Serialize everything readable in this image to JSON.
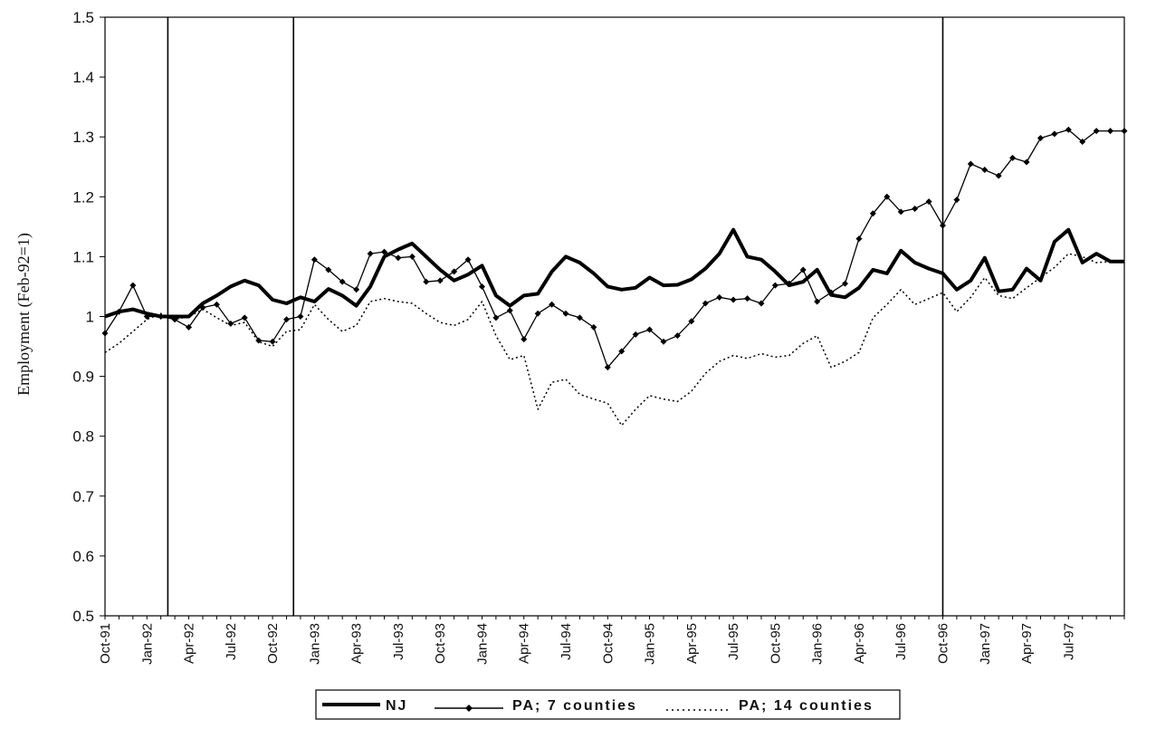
{
  "chart_data": {
    "type": "line",
    "ylabel": "Employment (Feb-92=1)",
    "xlabel": "",
    "ylim": [
      0.5,
      1.5
    ],
    "yticks": [
      "0.5",
      "0.6",
      "0.7",
      "0.8",
      "0.9",
      "1",
      "1.1",
      "1.2",
      "1.3",
      "1.4",
      "1.5"
    ],
    "x_start": "Oct-91",
    "x_count": 74,
    "x_tick_labels": [
      "Oct-91",
      "Jan-92",
      "Apr-92",
      "Jul-92",
      "Oct-92",
      "Jan-93",
      "Apr-93",
      "Jul-93",
      "Oct-93",
      "Jan-94",
      "Apr-94",
      "Jul-94",
      "Oct-94",
      "Jan-95",
      "Apr-95",
      "Jul-95",
      "Oct-95",
      "Jan-96",
      "Apr-96",
      "Jul-96",
      "Oct-96",
      "Jan-97",
      "Apr-97",
      "Jul-97"
    ],
    "vertical_markers": [
      "Feb-92/Mar-92",
      "Nov-92/Dec-92",
      "Oct-96"
    ],
    "legend_position": "bottom",
    "series": [
      {
        "name": "NJ",
        "style": "thick-solid",
        "color": "#000000",
        "values": [
          1.0,
          1.008,
          1.012,
          1.005,
          1.0,
          1.0,
          1.0,
          1.022,
          1.035,
          1.05,
          1.06,
          1.052,
          1.028,
          1.022,
          1.032,
          1.025,
          1.046,
          1.035,
          1.018,
          1.05,
          1.1,
          1.112,
          1.122,
          1.1,
          1.078,
          1.06,
          1.07,
          1.085,
          1.035,
          1.018,
          1.035,
          1.038,
          1.075,
          1.1,
          1.09,
          1.072,
          1.05,
          1.045,
          1.048,
          1.065,
          1.052,
          1.053,
          1.062,
          1.08,
          1.105,
          1.145,
          1.1,
          1.095,
          1.075,
          1.052,
          1.058,
          1.078,
          1.036,
          1.032,
          1.048,
          1.078,
          1.072,
          1.11,
          1.09,
          1.08,
          1.072,
          1.045,
          1.06,
          1.098,
          1.042,
          1.045,
          1.08,
          1.06,
          1.125,
          1.145,
          1.09,
          1.105,
          1.092,
          1.092
        ]
      },
      {
        "name": "PA; 7 counties",
        "style": "thin-solid-diamond",
        "color": "#000000",
        "values": [
          0.972,
          1.008,
          1.052,
          1.0,
          1.0,
          0.995,
          0.982,
          1.015,
          1.02,
          0.988,
          0.998,
          0.96,
          0.958,
          0.995,
          1.0,
          1.095,
          1.078,
          1.058,
          1.045,
          1.105,
          1.108,
          1.098,
          1.1,
          1.058,
          1.06,
          1.075,
          1.095,
          1.05,
          0.998,
          1.01,
          0.962,
          1.005,
          1.02,
          1.005,
          0.998,
          0.982,
          0.915,
          0.942,
          0.97,
          0.978,
          0.958,
          0.968,
          0.992,
          1.022,
          1.032,
          1.028,
          1.03,
          1.022,
          1.052,
          1.055,
          1.078,
          1.025,
          1.04,
          1.055,
          1.13,
          1.172,
          1.2,
          1.175,
          1.18,
          1.192,
          1.152,
          1.195,
          1.255,
          1.245,
          1.235,
          1.265,
          1.258,
          1.298,
          1.305,
          1.312,
          1.292,
          1.31,
          1.31,
          1.31
        ]
      },
      {
        "name": "PA; 14 counties",
        "style": "dotted",
        "color": "#000000",
        "values": [
          0.94,
          0.955,
          0.975,
          0.995,
          1.005,
          0.995,
          1.0,
          1.012,
          0.998,
          0.985,
          0.99,
          0.958,
          0.95,
          0.975,
          0.978,
          1.02,
          0.995,
          0.975,
          0.985,
          1.025,
          1.03,
          1.025,
          1.022,
          1.005,
          0.99,
          0.985,
          0.995,
          1.025,
          0.968,
          0.928,
          0.935,
          0.845,
          0.89,
          0.895,
          0.87,
          0.862,
          0.855,
          0.818,
          0.845,
          0.868,
          0.862,
          0.858,
          0.875,
          0.905,
          0.925,
          0.935,
          0.93,
          0.938,
          0.932,
          0.935,
          0.955,
          0.968,
          0.915,
          0.925,
          0.94,
          0.998,
          1.02,
          1.045,
          1.02,
          1.03,
          1.04,
          1.008,
          1.032,
          1.065,
          1.035,
          1.03,
          1.048,
          1.065,
          1.082,
          1.105,
          1.1,
          1.09,
          1.092,
          1.092
        ]
      }
    ]
  }
}
